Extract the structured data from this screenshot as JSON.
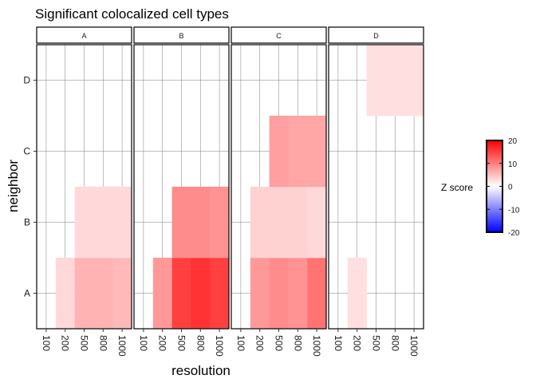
{
  "chart_data": {
    "type": "heatmap",
    "title": "Significant colocalized cell types",
    "xlabel": "resolution",
    "ylabel": "neighbor",
    "facets": [
      "A",
      "B",
      "C",
      "D"
    ],
    "x_categories": [
      "100",
      "200",
      "500",
      "800",
      "1000"
    ],
    "y_categories": [
      "A",
      "B",
      "C",
      "D"
    ],
    "grid": true,
    "legend": {
      "title": "Z score",
      "position": "right",
      "limits": [
        -20,
        20
      ],
      "ticks": [
        20,
        10,
        0,
        -10,
        -20
      ],
      "colors": {
        "low": "#0000ff",
        "mid": "#ffffff",
        "high": "#ff0000"
      }
    },
    "cells": [
      {
        "facet": "A",
        "x": "200",
        "y": "A",
        "z": 3
      },
      {
        "facet": "A",
        "x": "500",
        "y": "A",
        "z": 6
      },
      {
        "facet": "A",
        "x": "800",
        "y": "A",
        "z": 6
      },
      {
        "facet": "A",
        "x": "1000",
        "y": "A",
        "z": 5.5
      },
      {
        "facet": "A",
        "x": "500",
        "y": "B",
        "z": 3
      },
      {
        "facet": "A",
        "x": "800",
        "y": "B",
        "z": 3
      },
      {
        "facet": "A",
        "x": "1000",
        "y": "B",
        "z": 3
      },
      {
        "facet": "B",
        "x": "200",
        "y": "A",
        "z": 8
      },
      {
        "facet": "B",
        "x": "500",
        "y": "A",
        "z": 15
      },
      {
        "facet": "B",
        "x": "800",
        "y": "A",
        "z": 16
      },
      {
        "facet": "B",
        "x": "1000",
        "y": "A",
        "z": 15
      },
      {
        "facet": "B",
        "x": "500",
        "y": "B",
        "z": 9
      },
      {
        "facet": "B",
        "x": "800",
        "y": "B",
        "z": 9
      },
      {
        "facet": "B",
        "x": "1000",
        "y": "B",
        "z": 8.5
      },
      {
        "facet": "C",
        "x": "200",
        "y": "A",
        "z": 8
      },
      {
        "facet": "C",
        "x": "500",
        "y": "A",
        "z": 9
      },
      {
        "facet": "C",
        "x": "800",
        "y": "A",
        "z": 8.5
      },
      {
        "facet": "C",
        "x": "1000",
        "y": "A",
        "z": 11
      },
      {
        "facet": "C",
        "x": "200",
        "y": "B",
        "z": 3.5
      },
      {
        "facet": "C",
        "x": "500",
        "y": "B",
        "z": 3.5
      },
      {
        "facet": "C",
        "x": "800",
        "y": "B",
        "z": 3.5
      },
      {
        "facet": "C",
        "x": "1000",
        "y": "B",
        "z": 3
      },
      {
        "facet": "C",
        "x": "500",
        "y": "C",
        "z": 7.5
      },
      {
        "facet": "C",
        "x": "800",
        "y": "C",
        "z": 7
      },
      {
        "facet": "C",
        "x": "1000",
        "y": "C",
        "z": 7
      },
      {
        "facet": "D",
        "x": "200",
        "y": "A",
        "z": 2.5
      },
      {
        "facet": "D",
        "x": "500",
        "y": "D",
        "z": 2.5
      },
      {
        "facet": "D",
        "x": "800",
        "y": "D",
        "z": 2.5
      },
      {
        "facet": "D",
        "x": "1000",
        "y": "D",
        "z": 2.5
      }
    ]
  }
}
